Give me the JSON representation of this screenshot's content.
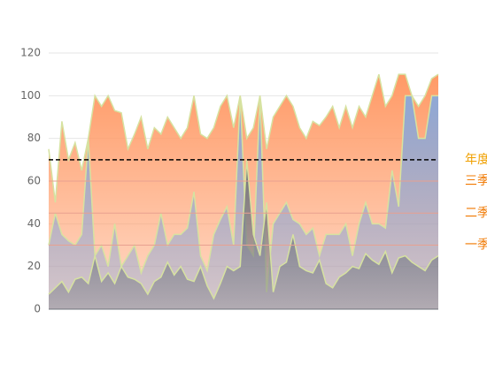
{
  "chart_data": {
    "type": "area",
    "categories": [
      null,
      null,
      null,
      null,
      null,
      null,
      null,
      null,
      null,
      null,
      null,
      null,
      null,
      null,
      null,
      null,
      null,
      null,
      null,
      null,
      null,
      null,
      null,
      null,
      null,
      null,
      null,
      null,
      null,
      null,
      null,
      null,
      null,
      null,
      null,
      null,
      null,
      null,
      null,
      null,
      null,
      null,
      null,
      null,
      null,
      null,
      null,
      null,
      null,
      null,
      null,
      null,
      null,
      null,
      null,
      null,
      null,
      null,
      null,
      null
    ],
    "series": [
      {
        "color": "#ff9a66",
        "values": [
          75,
          50,
          88,
          70,
          78,
          65,
          80,
          100,
          95,
          100,
          93,
          92,
          75,
          82,
          90,
          75,
          85,
          82,
          90,
          85,
          80,
          85,
          100,
          82,
          80,
          85,
          95,
          100,
          85,
          100,
          80,
          85,
          100,
          75,
          90,
          95,
          100,
          95,
          85,
          80,
          88,
          86,
          90,
          95,
          85,
          95,
          85,
          95,
          90,
          100,
          110,
          95,
          100,
          110,
          110,
          100,
          95,
          100,
          108,
          110
        ]
      },
      {
        "color": "#8ea8d6",
        "values": [
          30,
          45,
          35,
          32,
          30,
          35,
          80,
          25,
          30,
          20,
          40,
          20,
          25,
          30,
          17,
          25,
          30,
          45,
          30,
          35,
          35,
          38,
          55,
          25,
          18,
          35,
          42,
          48,
          30,
          100,
          30,
          25,
          100,
          8,
          40,
          45,
          50,
          42,
          40,
          35,
          38,
          25,
          35,
          35,
          35,
          40,
          25,
          40,
          50,
          40,
          40,
          38,
          65,
          48,
          100,
          100,
          80,
          80,
          100,
          100
        ]
      },
      {
        "color": "#6e7480",
        "values": [
          7,
          10,
          13,
          8,
          14,
          15,
          12,
          25,
          13,
          17,
          12,
          20,
          15,
          14,
          12,
          7,
          13,
          15,
          22,
          16,
          20,
          14,
          13,
          20,
          11,
          5,
          12,
          20,
          18,
          20,
          70,
          35,
          25,
          50,
          8,
          20,
          22,
          35,
          20,
          18,
          17,
          23,
          12,
          10,
          15,
          17,
          20,
          19,
          26,
          23,
          21,
          27,
          17,
          24,
          25,
          22,
          20,
          18,
          23,
          25
        ]
      }
    ],
    "line_color": "#d6e2a0",
    "ylim": [
      0,
      120
    ],
    "yticks": [
      0,
      20,
      40,
      60,
      80,
      100,
      120
    ],
    "grid": true,
    "mark_lines": [
      {
        "value": 70,
        "label": "年度",
        "style": "dashed",
        "color": "#000000",
        "label_color": "#f0a000"
      },
      {
        "value": 60,
        "label": "三季",
        "style": "solid",
        "color": "#e8a090",
        "label_color": "#f07800"
      },
      {
        "value": 45,
        "label": "二季",
        "style": "solid",
        "color": "#e8a090",
        "label_color": "#f07800"
      },
      {
        "value": 30,
        "label": "一季",
        "style": "solid",
        "color": "#e8a090",
        "label_color": "#f07800"
      }
    ]
  }
}
